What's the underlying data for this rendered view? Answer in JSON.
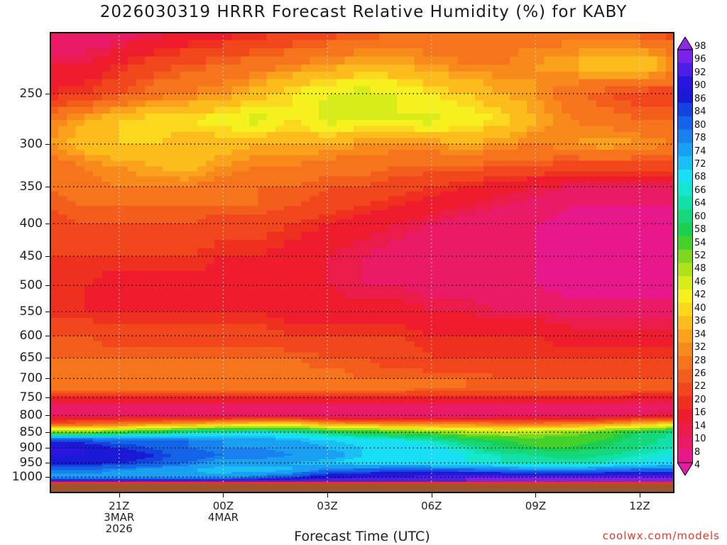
{
  "title": "2026030319 HRRR Forecast Relative Humidity (%) for KABY",
  "x_axis_title": "Forecast Time (UTC)",
  "credit": "coolwx.com/models",
  "chart_data": {
    "type": "heatmap",
    "title": "2026030319 HRRR Forecast Relative Humidity (%) for KABY",
    "xlabel": "Forecast Time (UTC)",
    "ylabel": "",
    "y_scale": "log-pressure (inverted)",
    "y_ticks": [
      250,
      300,
      350,
      400,
      450,
      500,
      550,
      600,
      650,
      700,
      750,
      800,
      850,
      900,
      950,
      1000
    ],
    "x_ticks": [
      {
        "label": "21Z",
        "sub1": "3MAR",
        "sub2": "2026",
        "hour": 2
      },
      {
        "label": "00Z",
        "sub1": "4MAR",
        "sub2": "",
        "hour": 5
      },
      {
        "label": "03Z",
        "sub1": "",
        "sub2": "",
        "hour": 8
      },
      {
        "label": "06Z",
        "sub1": "",
        "sub2": "",
        "hour": 11
      },
      {
        "label": "09Z",
        "sub1": "",
        "sub2": "",
        "hour": 14
      },
      {
        "label": "12Z",
        "sub1": "",
        "sub2": "",
        "hour": 17
      }
    ],
    "x_range_hours": [
      0,
      18
    ],
    "y_range_hpa": [
      200,
      1025
    ],
    "grid": true,
    "colorbar_labels": [
      98,
      96,
      92,
      90,
      86,
      84,
      80,
      78,
      74,
      72,
      68,
      66,
      64,
      60,
      58,
      54,
      52,
      48,
      46,
      42,
      40,
      36,
      34,
      32,
      28,
      26,
      22,
      20,
      16,
      14,
      10,
      8,
      4
    ],
    "colorbar_colors": [
      "#8a2be2",
      "#7a22e8",
      "#4b1fe6",
      "#2a14e0",
      "#1a1ad6",
      "#1444e0",
      "#1464e8",
      "#1a82f0",
      "#1aa0f2",
      "#1ac0f5",
      "#18dff5",
      "#14e6d0",
      "#12e0a8",
      "#14d87a",
      "#1ad050",
      "#46d02a",
      "#7ed81e",
      "#aee21a",
      "#d8ec1a",
      "#f5f01e",
      "#fbd81e",
      "#fcbc1c",
      "#faa21c",
      "#f88a1c",
      "#f6741c",
      "#f45e1c",
      "#f2461c",
      "#f0301e",
      "#ee1c2c",
      "#ec1c4a",
      "#ea1a66",
      "#e8188a",
      "#e41aa8"
    ],
    "pressure_levels": [
      200,
      225,
      250,
      275,
      300,
      325,
      350,
      375,
      400,
      450,
      500,
      550,
      600,
      650,
      700,
      725,
      750,
      775,
      800,
      825,
      850,
      875,
      900,
      925,
      950,
      975,
      1000,
      1015
    ],
    "hours": [
      0,
      1,
      2,
      3,
      4,
      5,
      6,
      7,
      8,
      9,
      10,
      11,
      12,
      13,
      14,
      15,
      16,
      17,
      18
    ],
    "values": [
      [
        10,
        10,
        12,
        14,
        16,
        18,
        20,
        22,
        24,
        26,
        28,
        28,
        28,
        30,
        30,
        30,
        28,
        26,
        24
      ],
      [
        16,
        16,
        20,
        24,
        26,
        28,
        30,
        32,
        34,
        36,
        36,
        34,
        32,
        32,
        34,
        36,
        40,
        42,
        34
      ],
      [
        20,
        22,
        26,
        30,
        32,
        34,
        38,
        42,
        46,
        48,
        46,
        42,
        40,
        36,
        34,
        30,
        26,
        24,
        24
      ],
      [
        32,
        36,
        40,
        42,
        42,
        44,
        48,
        42,
        48,
        46,
        46,
        48,
        44,
        42,
        36,
        32,
        30,
        28,
        28
      ],
      [
        34,
        38,
        40,
        40,
        38,
        38,
        36,
        36,
        36,
        34,
        34,
        34,
        36,
        34,
        32,
        34,
        36,
        34,
        32
      ],
      [
        30,
        32,
        34,
        36,
        38,
        34,
        32,
        32,
        30,
        30,
        28,
        28,
        28,
        26,
        26,
        24,
        24,
        24,
        24
      ],
      [
        28,
        30,
        32,
        32,
        32,
        30,
        28,
        28,
        26,
        26,
        24,
        22,
        20,
        18,
        16,
        14,
        14,
        14,
        14
      ],
      [
        26,
        28,
        28,
        28,
        28,
        28,
        28,
        26,
        24,
        22,
        20,
        18,
        16,
        14,
        12,
        10,
        10,
        10,
        10
      ],
      [
        24,
        26,
        26,
        26,
        26,
        24,
        24,
        22,
        20,
        18,
        16,
        14,
        12,
        10,
        10,
        8,
        8,
        8,
        8
      ],
      [
        22,
        22,
        22,
        22,
        22,
        20,
        20,
        18,
        16,
        14,
        12,
        10,
        10,
        10,
        10,
        8,
        8,
        8,
        8
      ],
      [
        20,
        20,
        18,
        18,
        18,
        18,
        18,
        16,
        16,
        14,
        14,
        12,
        12,
        10,
        10,
        8,
        8,
        8,
        8
      ],
      [
        20,
        20,
        20,
        20,
        20,
        20,
        20,
        18,
        18,
        18,
        18,
        16,
        16,
        14,
        14,
        12,
        12,
        12,
        12
      ],
      [
        26,
        26,
        24,
        24,
        24,
        24,
        24,
        22,
        22,
        22,
        22,
        20,
        20,
        20,
        20,
        18,
        18,
        18,
        18
      ],
      [
        28,
        28,
        28,
        28,
        28,
        28,
        28,
        28,
        26,
        26,
        24,
        22,
        22,
        22,
        22,
        22,
        22,
        22,
        22
      ],
      [
        30,
        30,
        30,
        30,
        30,
        30,
        30,
        30,
        30,
        28,
        28,
        28,
        28,
        26,
        26,
        26,
        26,
        26,
        26
      ],
      [
        32,
        32,
        32,
        32,
        30,
        30,
        30,
        30,
        30,
        30,
        30,
        28,
        28,
        28,
        28,
        28,
        28,
        28,
        28
      ],
      [
        20,
        20,
        20,
        20,
        20,
        20,
        20,
        20,
        20,
        20,
        20,
        20,
        20,
        20,
        20,
        20,
        20,
        18,
        18
      ],
      [
        12,
        12,
        12,
        12,
        12,
        12,
        12,
        12,
        12,
        12,
        12,
        12,
        12,
        12,
        12,
        12,
        12,
        12,
        12
      ],
      [
        14,
        14,
        14,
        12,
        12,
        12,
        12,
        12,
        10,
        10,
        10,
        10,
        10,
        12,
        12,
        12,
        12,
        14,
        16
      ],
      [
        26,
        28,
        30,
        34,
        36,
        38,
        40,
        40,
        36,
        34,
        32,
        32,
        32,
        30,
        30,
        32,
        34,
        38,
        40
      ],
      [
        52,
        54,
        56,
        60,
        64,
        66,
        68,
        66,
        62,
        58,
        56,
        54,
        50,
        48,
        50,
        52,
        56,
        60,
        64
      ],
      [
        84,
        84,
        82,
        82,
        80,
        78,
        76,
        74,
        72,
        70,
        68,
        66,
        60,
        58,
        56,
        56,
        58,
        62,
        66
      ],
      [
        92,
        90,
        86,
        84,
        80,
        78,
        78,
        76,
        74,
        72,
        72,
        70,
        66,
        60,
        58,
        58,
        60,
        64,
        66
      ],
      [
        90,
        90,
        88,
        86,
        82,
        80,
        80,
        78,
        76,
        72,
        70,
        70,
        68,
        66,
        64,
        62,
        64,
        66,
        68
      ],
      [
        88,
        88,
        86,
        84,
        80,
        76,
        76,
        74,
        72,
        70,
        70,
        68,
        68,
        66,
        66,
        66,
        66,
        68,
        70
      ],
      [
        80,
        80,
        78,
        76,
        74,
        72,
        72,
        74,
        80,
        82,
        84,
        84,
        82,
        80,
        78,
        78,
        80,
        82,
        82
      ],
      [
        76,
        76,
        76,
        76,
        76,
        76,
        80,
        84,
        90,
        92,
        92,
        94,
        96,
        96,
        96,
        96,
        96,
        96,
        96
      ],
      [
        96,
        96,
        96,
        96,
        96,
        96,
        96,
        96,
        96,
        96,
        96,
        96,
        96,
        96,
        96,
        96,
        96,
        96,
        96
      ]
    ],
    "below_ground_color": "#a0522d",
    "grid_color": "#000000"
  }
}
